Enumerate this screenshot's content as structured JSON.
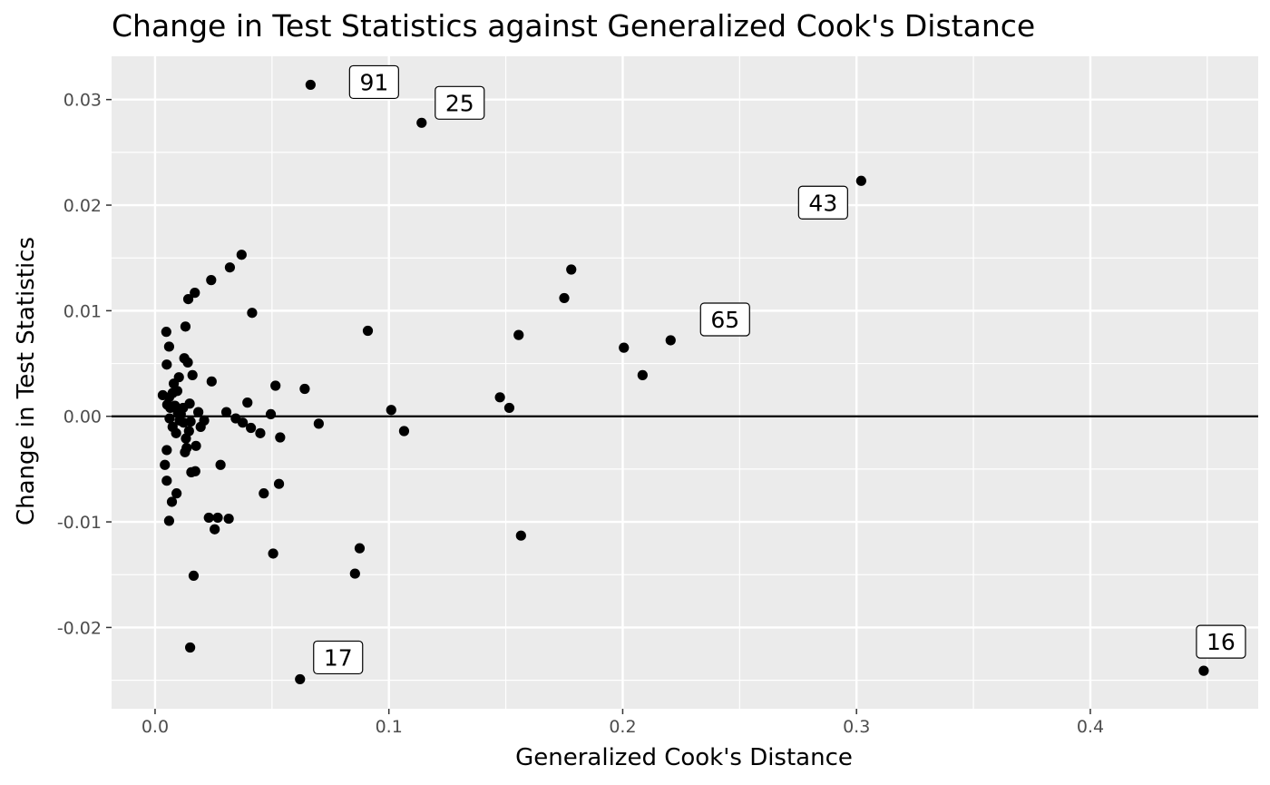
{
  "chart_data": {
    "type": "scatter",
    "title": "Change in Test Statistics against Generalized Cook's Distance",
    "xlabel": "Generalized Cook's Distance",
    "ylabel": "Change in Test Statistics",
    "xlim": [
      -0.0186,
      0.4718
    ],
    "ylim": [
      -0.0277,
      0.0341
    ],
    "x_ticks": [
      0.0,
      0.1,
      0.2,
      0.3,
      0.4
    ],
    "x_tick_labels": [
      "0.0",
      "0.1",
      "0.2",
      "0.3",
      "0.4"
    ],
    "y_ticks": [
      -0.02,
      -0.01,
      0.0,
      0.01,
      0.02,
      0.03
    ],
    "y_tick_labels": [
      "-0.02",
      "-0.01",
      "0.00",
      "0.01",
      "0.02",
      "0.03"
    ],
    "hline": 0,
    "grid": true,
    "panel_color": "#ebebeb",
    "grid_color": "#ffffff",
    "point_color": "#000000",
    "points": [
      [
        0.0033,
        0.002
      ],
      [
        0.0042,
        -0.0046
      ],
      [
        0.0048,
        0.008
      ],
      [
        0.005,
        -0.0061
      ],
      [
        0.005,
        -0.0032
      ],
      [
        0.005,
        0.0049
      ],
      [
        0.0052,
        0.0011
      ],
      [
        0.006,
        0.0066
      ],
      [
        0.006,
        -0.0099
      ],
      [
        0.006,
        0.0018
      ],
      [
        0.0062,
        -0.0002
      ],
      [
        0.0065,
        0.0008
      ],
      [
        0.0072,
        -0.0081
      ],
      [
        0.0075,
        0.0022
      ],
      [
        0.0075,
        -0.001
      ],
      [
        0.008,
        0.0031
      ],
      [
        0.0085,
        0.001
      ],
      [
        0.009,
        -0.0016
      ],
      [
        0.0092,
        -0.0073
      ],
      [
        0.0095,
        0.0024
      ],
      [
        0.0098,
        0.0003
      ],
      [
        0.0102,
        0.0037
      ],
      [
        0.0105,
        -0.0004
      ],
      [
        0.011,
        0.0002
      ],
      [
        0.012,
        0.0008
      ],
      [
        0.0122,
        -0.0006
      ],
      [
        0.0125,
        0.0055
      ],
      [
        0.0128,
        -0.0034
      ],
      [
        0.013,
        0.0085
      ],
      [
        0.0132,
        -0.0021
      ],
      [
        0.0135,
        -0.003
      ],
      [
        0.014,
        0.0051
      ],
      [
        0.0142,
        0.0111
      ],
      [
        0.0145,
        -0.0014
      ],
      [
        0.0148,
        0.0012
      ],
      [
        0.015,
        -0.0219
      ],
      [
        0.0152,
        -0.0005
      ],
      [
        0.0155,
        -0.0053
      ],
      [
        0.016,
        0.0039
      ],
      [
        0.0165,
        -0.0151
      ],
      [
        0.017,
        0.0117
      ],
      [
        0.0172,
        -0.0052
      ],
      [
        0.0175,
        -0.0028
      ],
      [
        0.0185,
        0.0004
      ],
      [
        0.0195,
        -0.001
      ],
      [
        0.021,
        -0.0004
      ],
      [
        0.023,
        -0.0096
      ],
      [
        0.024,
        0.0129
      ],
      [
        0.0242,
        0.0033
      ],
      [
        0.0255,
        -0.0107
      ],
      [
        0.0268,
        -0.0096
      ],
      [
        0.028,
        -0.0046
      ],
      [
        0.0305,
        0.0004
      ],
      [
        0.0315,
        -0.0097
      ],
      [
        0.032,
        0.0141
      ],
      [
        0.0345,
        -0.0002
      ],
      [
        0.037,
        0.0153
      ],
      [
        0.0375,
        -0.0006
      ],
      [
        0.0395,
        0.0013
      ],
      [
        0.041,
        -0.0011
      ],
      [
        0.0415,
        0.0098
      ],
      [
        0.045,
        -0.0016
      ],
      [
        0.0465,
        -0.0073
      ],
      [
        0.0495,
        0.0002
      ],
      [
        0.0505,
        -0.013
      ],
      [
        0.0515,
        0.0029
      ],
      [
        0.053,
        -0.0064
      ],
      [
        0.0535,
        -0.002
      ],
      [
        0.062,
        -0.0249
      ],
      [
        0.064,
        0.0026
      ],
      [
        0.0665,
        0.0314
      ],
      [
        0.07,
        -0.0007
      ],
      [
        0.0855,
        -0.0149
      ],
      [
        0.0875,
        -0.0125
      ],
      [
        0.091,
        0.0081
      ],
      [
        0.101,
        0.0006
      ],
      [
        0.1065,
        -0.0014
      ],
      [
        0.114,
        0.0278
      ],
      [
        0.1475,
        0.0018
      ],
      [
        0.1515,
        0.0008
      ],
      [
        0.1555,
        0.0077
      ],
      [
        0.1565,
        -0.0113
      ],
      [
        0.175,
        0.0112
      ],
      [
        0.178,
        0.0139
      ],
      [
        0.2005,
        0.0065
      ],
      [
        0.2085,
        0.0039
      ],
      [
        0.2205,
        0.0072
      ],
      [
        0.302,
        0.0223
      ],
      [
        0.4485,
        -0.0241
      ]
    ],
    "labels": [
      {
        "text": "91",
        "x": 0.0665,
        "y": 0.0314
      },
      {
        "text": "25",
        "x": 0.114,
        "y": 0.0278
      },
      {
        "text": "43",
        "x": 0.302,
        "y": 0.0223
      },
      {
        "text": "65",
        "x": 0.2205,
        "y": 0.0072
      },
      {
        "text": "17",
        "x": 0.062,
        "y": -0.0249
      },
      {
        "text": "16",
        "x": 0.4485,
        "y": -0.0241
      }
    ]
  }
}
